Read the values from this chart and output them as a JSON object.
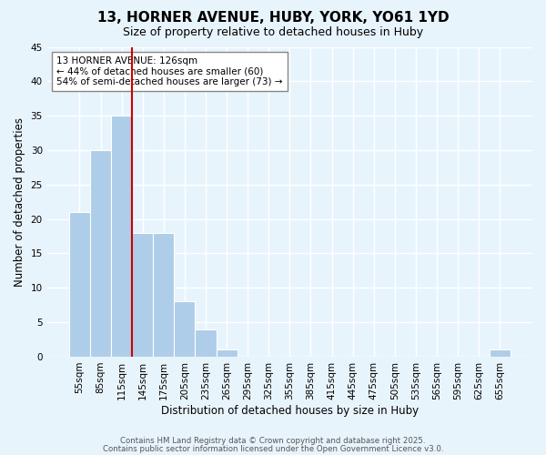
{
  "title": "13, HORNER AVENUE, HUBY, YORK, YO61 1YD",
  "subtitle": "Size of property relative to detached houses in Huby",
  "xlabel": "Distribution of detached houses by size in Huby",
  "ylabel": "Number of detached properties",
  "bar_color": "#aecde8",
  "background_color": "#e8f4fc",
  "grid_color": "#ffffff",
  "tick_labels": [
    "55sqm",
    "85sqm",
    "115sqm",
    "145sqm",
    "175sqm",
    "205sqm",
    "235sqm",
    "265sqm",
    "295sqm",
    "325sqm",
    "355sqm",
    "385sqm",
    "415sqm",
    "445sqm",
    "475sqm",
    "505sqm",
    "535sqm",
    "565sqm",
    "595sqm",
    "625sqm",
    "655sqm"
  ],
  "values": [
    21,
    30,
    35,
    18,
    18,
    8,
    4,
    1,
    0,
    0,
    0,
    0,
    0,
    0,
    0,
    0,
    0,
    0,
    0,
    0,
    1
  ],
  "ylim": [
    0,
    45
  ],
  "yticks": [
    0,
    5,
    10,
    15,
    20,
    25,
    30,
    35,
    40,
    45
  ],
  "vline_color": "#cc0000",
  "vline_x_index": 2.5,
  "annotation_title": "13 HORNER AVENUE: 126sqm",
  "annotation_line1": "← 44% of detached houses are smaller (60)",
  "annotation_line2": "54% of semi-detached houses are larger (73) →",
  "footer_line1": "Contains HM Land Registry data © Crown copyright and database right 2025.",
  "footer_line2": "Contains public sector information licensed under the Open Government Licence v3.0."
}
